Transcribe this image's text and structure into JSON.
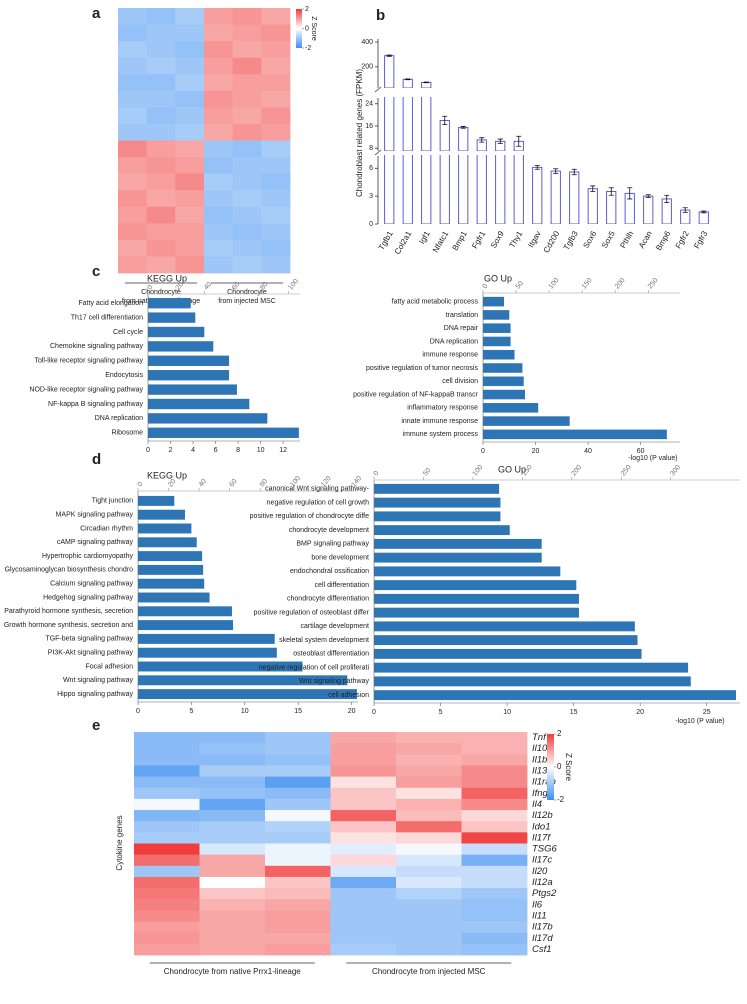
{
  "chart_data": [
    {
      "type": "heatmap",
      "panel": "a",
      "legend_title": "Z Score",
      "colorbar_ticks": [
        2,
        0,
        -2
      ],
      "zlim": [
        -2,
        2
      ],
      "colormap": [
        "#3d8ef0",
        "#ffffff",
        "#f03c3c"
      ],
      "xlabels": [
        [
          "Chondrocyte",
          "from native Prrx1-lineage"
        ],
        [
          "Chondrocyte",
          "from injected MSC"
        ]
      ],
      "values": [
        [
          -1.0,
          -1.1,
          -0.9,
          1.0,
          1.1,
          0.9
        ],
        [
          -1.1,
          -1.0,
          -1.0,
          0.9,
          1.0,
          1.1
        ],
        [
          -0.9,
          -1.0,
          -1.1,
          1.1,
          0.9,
          1.0
        ],
        [
          -1.0,
          -0.9,
          -1.0,
          1.0,
          1.2,
          0.9
        ],
        [
          -1.1,
          -1.1,
          -0.9,
          0.9,
          1.0,
          1.0
        ],
        [
          -1.0,
          -1.0,
          -1.1,
          1.1,
          1.0,
          0.9
        ],
        [
          -0.9,
          -1.1,
          -1.0,
          1.0,
          0.9,
          1.1
        ],
        [
          -1.0,
          -1.0,
          -0.9,
          0.9,
          1.1,
          1.0
        ],
        [
          1.2,
          1.0,
          0.9,
          -1.0,
          -1.1,
          -0.9
        ],
        [
          1.0,
          1.1,
          1.0,
          -1.1,
          -1.0,
          -1.0
        ],
        [
          0.9,
          1.0,
          1.2,
          -0.9,
          -1.0,
          -1.1
        ],
        [
          1.1,
          0.9,
          1.0,
          -1.0,
          -0.9,
          -1.0
        ],
        [
          1.0,
          1.2,
          0.9,
          -1.1,
          -1.0,
          -0.9
        ],
        [
          1.1,
          1.0,
          1.0,
          -1.0,
          -1.1,
          -1.0
        ],
        [
          0.9,
          1.1,
          1.0,
          -0.9,
          -1.0,
          -1.1
        ],
        [
          1.0,
          0.9,
          1.1,
          -1.0,
          -0.9,
          -1.0
        ]
      ]
    },
    {
      "type": "bar",
      "panel": "b",
      "ylabel": "Chondroblast related genes (FPKM)",
      "color": "#4b4bd6",
      "categories": [
        "Tgfb1",
        "Col2a1",
        "Igf1",
        "Nfatc1",
        "Bmp1",
        "Fgfr1",
        "Sox9",
        "Thy1",
        "Itgav",
        "Cd200",
        "Tgfb3",
        "Sox6",
        "Sox5",
        "Pthlh",
        "Acan",
        "Bmp6",
        "Fgfr2",
        "Fgfr3"
      ],
      "values": [
        290,
        100,
        75,
        18,
        15.5,
        11,
        10.5,
        10.5,
        6.1,
        5.7,
        5.6,
        3.8,
        3.5,
        3.3,
        3.0,
        2.7,
        1.5,
        1.3
      ],
      "errors": [
        5,
        3,
        3,
        1.5,
        0.3,
        0.8,
        0.8,
        1.8,
        0.2,
        0.25,
        0.3,
        0.3,
        0.4,
        0.6,
        0.15,
        0.4,
        0.25,
        0.1
      ],
      "segments": [
        {
          "ylim": [
            0,
            7
          ],
          "yticks": [
            0,
            3,
            6
          ]
        },
        {
          "ylim": [
            7,
            25
          ],
          "yticks": [
            8,
            16,
            24
          ]
        },
        {
          "ylim": [
            30,
            400
          ],
          "yticks": [
            200,
            400
          ]
        }
      ]
    },
    {
      "type": "barh",
      "panel": "c",
      "title": "KEGG Up",
      "color": "#2e75b6",
      "categories": [
        "Fatty acid elongation",
        "Th17 cell differentiation",
        "Cell cycle",
        "Chemokine signaling pathway",
        "Toll-like receptor signaling pathway",
        "Endocytosis",
        "NOD-like receptor signaling pathway",
        "NF-kappa B signaling pathway",
        "DNA replication",
        "Ribosome"
      ],
      "values": [
        3.8,
        4.2,
        5.0,
        5.8,
        7.2,
        7.2,
        7.9,
        9.0,
        10.6,
        13.4
      ],
      "xlim": [
        0,
        13.5
      ],
      "xticks": [
        0,
        2,
        4,
        6,
        8,
        10,
        12
      ],
      "x2lim": [
        0,
        108
      ],
      "x2ticks": [
        0,
        20,
        40,
        60,
        80,
        100
      ]
    },
    {
      "type": "barh",
      "title": "GO Up",
      "xlabel": "-log10 (P value)",
      "color": "#2e75b6",
      "categories": [
        "fatty acid metabolic process",
        "translation",
        "DNA repair",
        "DNA replication",
        "immune response",
        "positive regulation of tumor necrosis",
        "cell division",
        "positive regulation of NF-kappaB transcr",
        "inflammatory response",
        "innate immune response",
        "immune system process"
      ],
      "values": [
        8,
        10,
        10.5,
        10.5,
        12,
        15,
        15.5,
        16,
        21,
        33,
        70
      ],
      "xlim": [
        0,
        75
      ],
      "xticks": [
        0,
        20,
        40,
        60
      ],
      "x2lim": [
        0,
        298
      ],
      "x2ticks": [
        0,
        50,
        100,
        150,
        200,
        250
      ]
    },
    {
      "type": "barh",
      "panel": "d",
      "title": "KEGG Up",
      "color": "#2e75b6",
      "categories": [
        "Tight junction",
        "MAPK signaling pathway",
        "Circadian rhythm",
        "cAMP signaling pathway",
        "Hypertrophic cardiomyopathy",
        "Glycosaminoglycan biosynthesis  chondro",
        "Calcium signaling pathway",
        "Hedgehog signaling pathway",
        "Parathyroid hormone synthesis, secretion",
        "Growth hormone synthesis, secretion and",
        "TGF-beta signaling pathway",
        "PI3K-Akt signaling pathway",
        "Focal adhesion",
        "Wnt signaling pathway",
        "Hippo signaling pathway"
      ],
      "values": [
        3.4,
        4.4,
        5.0,
        5.5,
        6.0,
        6.1,
        6.2,
        6.7,
        8.8,
        8.9,
        12.8,
        13.0,
        15.4,
        19.6,
        20.5
      ],
      "xlim": [
        0,
        20.6
      ],
      "xticks": [
        0,
        5,
        10,
        15,
        20
      ],
      "x2lim": [
        0,
        144
      ],
      "x2ticks": [
        0,
        20,
        40,
        60,
        80,
        100,
        120,
        140
      ]
    },
    {
      "type": "barh",
      "title": "GO Up",
      "xlabel": "-log10 (P value)",
      "color": "#2e75b6",
      "categories": [
        "canonical Wnt signaling pathway-",
        "negative regulation of cell growth",
        "positive regulation of chondrocyte diffe",
        "chondrocyte development",
        "BMP signaling pathway",
        "bone development",
        "endochondral ossification",
        "cell differentiation",
        "chondrocyte differentiation",
        "positive regulation of osteoblast differ",
        "cartilage development",
        "skeletal system development",
        "osteoblast differentiation",
        "negative regulation of cell proliferati",
        "Wnt signaling pathway",
        "cell adhesion"
      ],
      "values": [
        9.4,
        9.5,
        9.5,
        10.2,
        12.6,
        12.6,
        14.0,
        15.2,
        15.4,
        15.4,
        19.6,
        19.8,
        20.1,
        23.6,
        23.8,
        27.2
      ],
      "xlim": [
        0,
        27.5
      ],
      "xticks": [
        0,
        5,
        10,
        15,
        20,
        25
      ],
      "x2lim": [
        0,
        370
      ],
      "x2ticks": [
        0,
        50,
        100,
        150,
        200,
        250,
        300
      ]
    },
    {
      "type": "heatmap",
      "panel": "e",
      "ylabel": "Cytokine genes",
      "legend_title": "Z Score",
      "colorbar_ticks": [
        2,
        0,
        -2
      ],
      "zlim": [
        -2,
        2
      ],
      "colormap": [
        "#3d8ef0",
        "#ffffff",
        "#f03c3c"
      ],
      "xlabels": [
        [
          "Chondrocyte from native Prrx1-lineage"
        ],
        [
          "Chondrocyte from injected MSC"
        ]
      ],
      "rows": [
        "Tnf",
        "Il10",
        "Il1b",
        "Il13",
        "Il1rap",
        "Ifng",
        "Il4",
        "Il12b",
        "Ido1",
        "Il17f",
        "TSG6",
        "Il17c",
        "Il20",
        "Il12a",
        "Ptgs2",
        "Il6",
        "Il11",
        "Il17b",
        "Il17d",
        "Csf1"
      ],
      "values": [
        [
          -1.2,
          -1.2,
          -1.0,
          0.9,
          0.8,
          0.8
        ],
        [
          -1.2,
          -1.1,
          -1.0,
          1.0,
          0.9,
          0.8
        ],
        [
          -1.2,
          -1.2,
          -1.1,
          1.0,
          0.8,
          0.9
        ],
        [
          -1.6,
          -0.9,
          -0.9,
          1.1,
          0.9,
          1.2
        ],
        [
          -1.2,
          -1.2,
          -1.7,
          0.3,
          1.0,
          1.2
        ],
        [
          -1.0,
          -1.1,
          -1.2,
          0.6,
          0.3,
          1.6
        ],
        [
          -0.1,
          -1.6,
          -1.0,
          0.6,
          0.8,
          1.2
        ],
        [
          -1.3,
          -1.2,
          -0.1,
          1.6,
          0.7,
          0.4
        ],
        [
          -1.0,
          -0.9,
          -0.8,
          0.6,
          1.5,
          0.6
        ],
        [
          -0.9,
          -0.9,
          -0.9,
          0.3,
          0.4,
          1.9
        ],
        [
          2.0,
          -0.4,
          -0.2,
          -0.3,
          -0.1,
          -0.6
        ],
        [
          1.5,
          0.9,
          -0.2,
          0.4,
          -0.4,
          -1.4
        ],
        [
          -1.0,
          0.9,
          1.6,
          -0.4,
          -0.6,
          -0.6
        ],
        [
          1.5,
          0.0,
          0.6,
          -1.5,
          -0.4,
          -0.6
        ],
        [
          1.4,
          0.6,
          0.7,
          -1.0,
          -0.8,
          -1.0
        ],
        [
          1.3,
          0.8,
          0.9,
          -1.0,
          -1.0,
          -1.1
        ],
        [
          1.2,
          0.9,
          1.0,
          -1.0,
          -1.0,
          -1.1
        ],
        [
          1.0,
          0.9,
          1.0,
          -1.0,
          -1.0,
          -1.0
        ],
        [
          1.1,
          0.9,
          0.9,
          -1.0,
          -1.0,
          -1.2
        ],
        [
          1.0,
          0.9,
          1.0,
          -0.9,
          -1.0,
          -1.1
        ]
      ]
    }
  ]
}
